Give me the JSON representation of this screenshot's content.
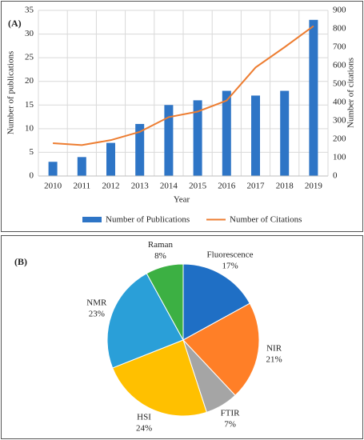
{
  "chart_data": [
    {
      "type": "bar-line",
      "label": "(A)",
      "x_label": "Year",
      "y_label": "Number of publications",
      "y2_label": "Number of citations",
      "categories": [
        "2010",
        "2011",
        "2012",
        "2013",
        "2014",
        "2015",
        "2016",
        "2017",
        "2018",
        "2019"
      ],
      "series": [
        {
          "name": "Number of Publications",
          "type": "bar",
          "color": "#2e75c6",
          "values": [
            3,
            4,
            7,
            11,
            15,
            16,
            18,
            17,
            18,
            33
          ]
        },
        {
          "name": "Number of Citations",
          "type": "line",
          "axis": "y2",
          "color": "#ed7d31",
          "values": [
            178,
            168,
            195,
            240,
            320,
            350,
            410,
            590,
            700,
            815
          ]
        }
      ],
      "ylim": [
        0,
        35
      ],
      "yticks": [
        0,
        5,
        10,
        15,
        20,
        25,
        30,
        35
      ],
      "y2lim": [
        0,
        900
      ],
      "y2ticks": [
        0,
        100,
        200,
        300,
        400,
        500,
        600,
        700,
        800,
        900
      ],
      "grid": true,
      "legend": "bottom"
    },
    {
      "type": "pie",
      "label": "(B)",
      "categories": [
        "Fluorescence",
        "NIR",
        "FTIR",
        "HSI",
        "NMR",
        "Raman"
      ],
      "values": [
        17,
        21,
        7,
        24,
        23,
        8
      ],
      "value_labels": [
        "17%",
        "21%",
        "7%",
        "24%",
        "23%",
        "8%"
      ],
      "colors": [
        "#1f6fc5",
        "#ff7f27",
        "#a5a5a5",
        "#ffc000",
        "#2a9fd8",
        "#3cb043"
      ]
    }
  ]
}
